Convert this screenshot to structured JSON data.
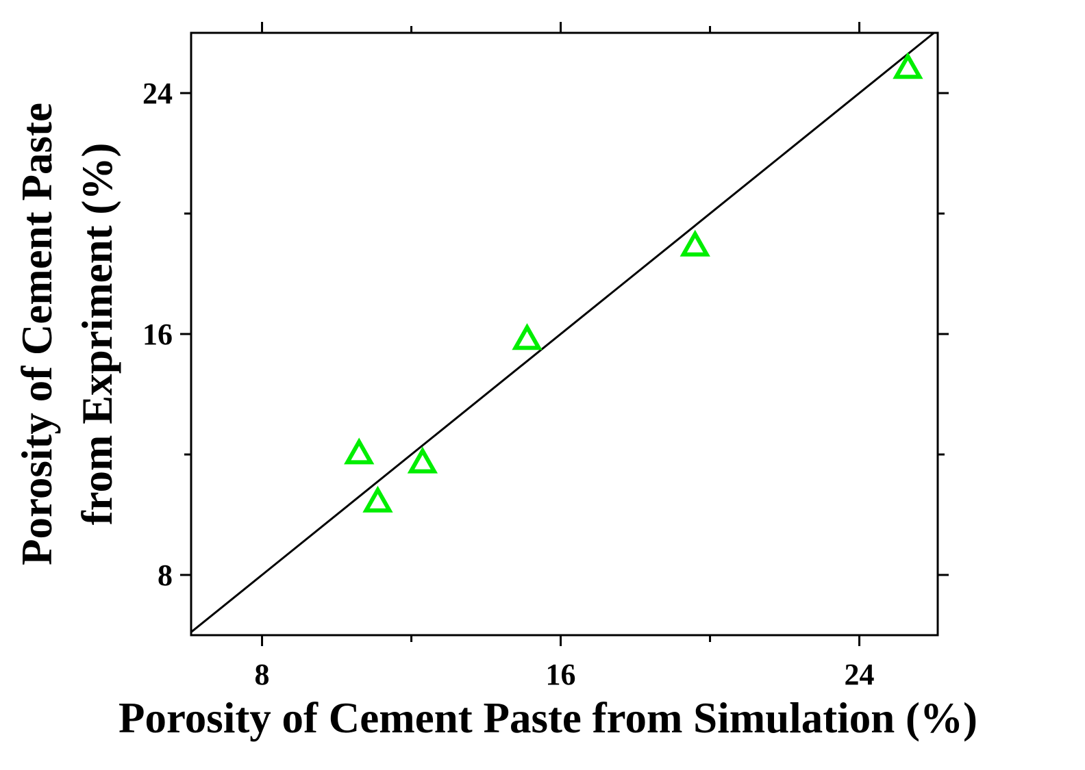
{
  "chart_data": {
    "type": "scatter",
    "title": "",
    "xlabel": "Porosity of Cement Paste from Simulation (%)",
    "ylabel_lines": [
      "Porosity of Cement Paste",
      "from Expriment (%)"
    ],
    "xlim": [
      6.1,
      26.1
    ],
    "ylim": [
      6.0,
      26.0
    ],
    "x_ticks": [
      8,
      16,
      24
    ],
    "y_ticks": [
      8,
      16,
      24
    ],
    "x_minor_ticks": [
      12,
      20
    ],
    "y_minor_ticks": [
      12,
      20
    ],
    "grid": false,
    "legend": "none",
    "reference_line": {
      "type": "y=x",
      "color": "#000000"
    },
    "series": [
      {
        "marker": "triangle-open",
        "color": "#00ee00",
        "points": [
          {
            "x": 10.6,
            "y": 12.0
          },
          {
            "x": 11.1,
            "y": 10.4
          },
          {
            "x": 12.3,
            "y": 11.7
          },
          {
            "x": 15.1,
            "y": 15.8
          },
          {
            "x": 19.6,
            "y": 18.9
          },
          {
            "x": 25.3,
            "y": 24.8
          }
        ]
      }
    ]
  }
}
